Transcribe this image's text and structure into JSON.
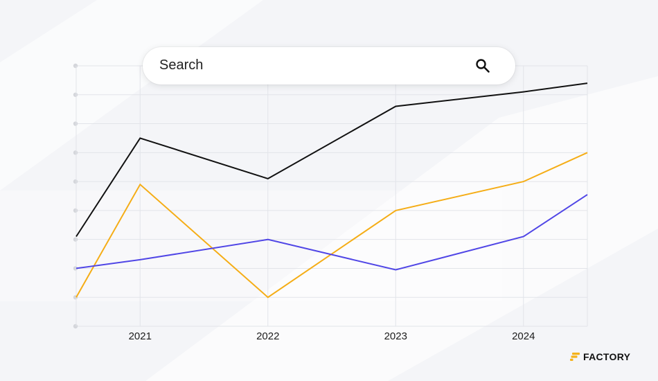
{
  "search": {
    "placeholder": "Search",
    "icon": "search-icon"
  },
  "brand": {
    "name": "FACTORY",
    "accent": "#f5b21a"
  },
  "colors": {
    "background": "#f4f5f8",
    "grid": "#e2e4e9"
  },
  "chart_data": {
    "type": "line",
    "title": "",
    "xlabel": "",
    "ylabel": "",
    "x": [
      2020.5,
      2021,
      2022,
      2023,
      2024,
      2024.5
    ],
    "x_ticks": [
      "2021",
      "2022",
      "2023",
      "2024"
    ],
    "ylim": [
      0,
      9
    ],
    "grid": true,
    "legend": "none",
    "series": [
      {
        "color": "#111111",
        "values": [
          3.1,
          6.5,
          5.1,
          7.6,
          8.1,
          8.4
        ]
      },
      {
        "color": "#f5ad16",
        "values": [
          1.0,
          4.9,
          1.0,
          4.0,
          5.0,
          6.0
        ]
      },
      {
        "color": "#5046e6",
        "values": [
          2.0,
          2.3,
          3.0,
          1.95,
          3.1,
          4.55
        ]
      }
    ]
  }
}
